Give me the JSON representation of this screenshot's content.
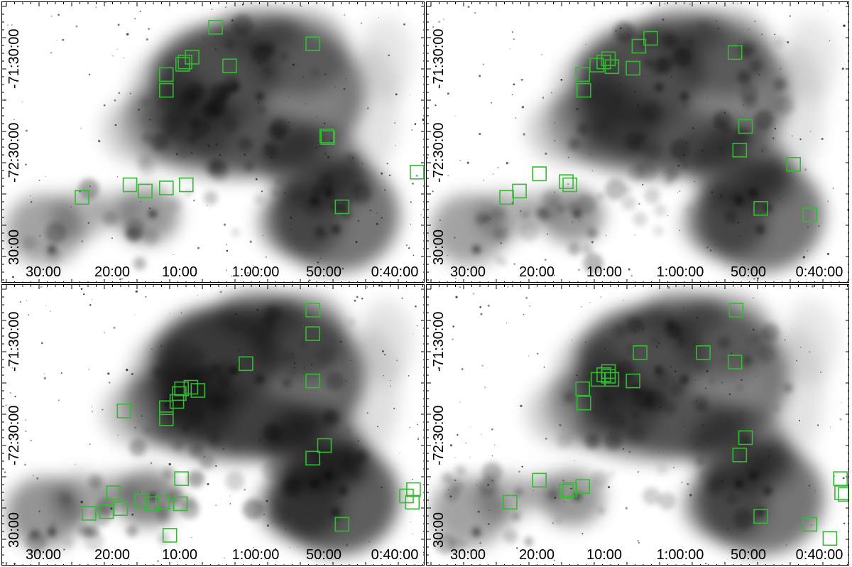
{
  "figure": {
    "x_tick_labels": [
      "30:00",
      "20:00",
      "10:00",
      "1:00:00",
      "50:00",
      "0:40:00"
    ],
    "y_tick_labels": [
      "-71:30:00",
      "-72:30:00",
      "30:00"
    ],
    "marker_color": "#33bb33",
    "panels": [
      {
        "id": "top-left",
        "markers": [
          {
            "ra": "1:05:30",
            "dec": "-71:18:00"
          },
          {
            "ra": "0:51:40",
            "dec": "-71:28:30"
          },
          {
            "ra": "1:08:50",
            "dec": "-71:37:00"
          },
          {
            "ra": "1:09:50",
            "dec": "-71:40:00"
          },
          {
            "ra": "1:10:10",
            "dec": "-71:41:30"
          },
          {
            "ra": "1:03:30",
            "dec": "-71:42:30"
          },
          {
            "ra": "1:12:30",
            "dec": "-71:48:00"
          },
          {
            "ra": "1:12:30",
            "dec": "-71:58:00"
          },
          {
            "ra": "0:49:40",
            "dec": "-72:27:00"
          },
          {
            "ra": "0:49:30",
            "dec": "-72:28:00"
          },
          {
            "ra": "0:36:50",
            "dec": "-72:50:00"
          },
          {
            "ra": "1:17:40",
            "dec": "-72:58:00"
          },
          {
            "ra": "1:09:40",
            "dec": "-72:58:00"
          },
          {
            "ra": "1:12:30",
            "dec": "-73:00:00"
          },
          {
            "ra": "1:15:30",
            "dec": "-73:02:00"
          },
          {
            "ra": "1:24:30",
            "dec": "-73:06:00"
          },
          {
            "ra": "0:47:30",
            "dec": "-73:12:00"
          }
        ]
      },
      {
        "id": "top-right",
        "markers": [
          {
            "ra": "1:04:00",
            "dec": "-71:25:00"
          },
          {
            "ra": "1:05:40",
            "dec": "-71:30:00"
          },
          {
            "ra": "0:52:00",
            "dec": "-71:34:00"
          },
          {
            "ra": "1:10:00",
            "dec": "-71:38:00"
          },
          {
            "ra": "1:10:40",
            "dec": "-71:40:00"
          },
          {
            "ra": "1:11:40",
            "dec": "-71:42:00"
          },
          {
            "ra": "1:09:30",
            "dec": "-71:43:00"
          },
          {
            "ra": "1:06:30",
            "dec": "-71:44:00"
          },
          {
            "ra": "1:13:40",
            "dec": "-71:48:00"
          },
          {
            "ra": "1:13:30",
            "dec": "-71:58:00"
          },
          {
            "ra": "0:50:30",
            "dec": "-72:21:00"
          },
          {
            "ra": "0:51:20",
            "dec": "-72:36:00"
          },
          {
            "ra": "0:43:40",
            "dec": "-72:45:00"
          },
          {
            "ra": "1:19:50",
            "dec": "-72:51:00"
          },
          {
            "ra": "1:16:00",
            "dec": "-72:56:00"
          },
          {
            "ra": "1:15:30",
            "dec": "-72:58:00"
          },
          {
            "ra": "1:22:40",
            "dec": "-73:02:00"
          },
          {
            "ra": "1:24:30",
            "dec": "-73:06:00"
          },
          {
            "ra": "0:48:20",
            "dec": "-73:13:00"
          },
          {
            "ra": "0:41:20",
            "dec": "-73:17:00"
          }
        ]
      },
      {
        "id": "bottom-left",
        "markers": [
          {
            "ra": "0:51:40",
            "dec": "-71:18:00"
          },
          {
            "ra": "0:51:40",
            "dec": "-71:33:00"
          },
          {
            "ra": "1:01:10",
            "dec": "-71:52:00"
          },
          {
            "ra": "0:51:40",
            "dec": "-72:03:00"
          },
          {
            "ra": "1:09:00",
            "dec": "-72:07:00"
          },
          {
            "ra": "1:10:20",
            "dec": "-72:08:00"
          },
          {
            "ra": "1:08:00",
            "dec": "-72:09:00"
          },
          {
            "ra": "1:10:40",
            "dec": "-72:11:00"
          },
          {
            "ra": "1:11:00",
            "dec": "-72:16:00"
          },
          {
            "ra": "1:12:30",
            "dec": "-72:20:00"
          },
          {
            "ra": "1:18:30",
            "dec": "-72:22:00"
          },
          {
            "ra": "1:12:30",
            "dec": "-72:27:00"
          },
          {
            "ra": "0:50:00",
            "dec": "-72:44:00"
          },
          {
            "ra": "0:51:40",
            "dec": "-72:52:00"
          },
          {
            "ra": "1:10:20",
            "dec": "-73:05:00"
          },
          {
            "ra": "0:37:20",
            "dec": "-73:12:00"
          },
          {
            "ra": "1:20:00",
            "dec": "-73:14:00"
          },
          {
            "ra": "0:38:20",
            "dec": "-73:16:00"
          },
          {
            "ra": "1:16:00",
            "dec": "-73:19:00"
          },
          {
            "ra": "0:37:30",
            "dec": "-73:20:00"
          },
          {
            "ra": "1:13:00",
            "dec": "-73:20:00"
          },
          {
            "ra": "1:14:30",
            "dec": "-73:21:00"
          },
          {
            "ra": "1:10:30",
            "dec": "-73:21:00"
          },
          {
            "ra": "1:19:00",
            "dec": "-73:24:00"
          },
          {
            "ra": "1:21:00",
            "dec": "-73:26:00"
          },
          {
            "ra": "1:23:30",
            "dec": "-73:27:00"
          },
          {
            "ra": "0:47:30",
            "dec": "-73:34:00"
          },
          {
            "ra": "1:12:00",
            "dec": "-73:41:00"
          }
        ]
      },
      {
        "id": "bottom-right",
        "markers": [
          {
            "ra": "0:51:50",
            "dec": "-71:18:00"
          },
          {
            "ra": "1:05:30",
            "dec": "-71:45:00"
          },
          {
            "ra": "0:56:30",
            "dec": "-71:45:00"
          },
          {
            "ra": "0:52:00",
            "dec": "-71:51:00"
          },
          {
            "ra": "1:10:00",
            "dec": "-71:57:00"
          },
          {
            "ra": "1:10:40",
            "dec": "-71:59:00"
          },
          {
            "ra": "1:10:00",
            "dec": "-72:00:00"
          },
          {
            "ra": "1:11:30",
            "dec": "-72:02:00"
          },
          {
            "ra": "1:09:30",
            "dec": "-72:02:00"
          },
          {
            "ra": "1:06:30",
            "dec": "-72:03:00"
          },
          {
            "ra": "1:13:40",
            "dec": "-72:08:00"
          },
          {
            "ra": "1:13:30",
            "dec": "-72:17:00"
          },
          {
            "ra": "0:50:30",
            "dec": "-72:39:00"
          },
          {
            "ra": "0:51:20",
            "dec": "-72:50:00"
          },
          {
            "ra": "0:37:00",
            "dec": "-73:05:00"
          },
          {
            "ra": "1:19:50",
            "dec": "-73:06:00"
          },
          {
            "ra": "1:15:30",
            "dec": "-73:12:00"
          },
          {
            "ra": "1:16:00",
            "dec": "-73:13:00"
          },
          {
            "ra": "1:13:40",
            "dec": "-73:10:00"
          },
          {
            "ra": "0:36:50",
            "dec": "-73:14:00"
          },
          {
            "ra": "0:36:20",
            "dec": "-73:15:00"
          },
          {
            "ra": "1:24:00",
            "dec": "-73:20:00"
          },
          {
            "ra": "0:48:20",
            "dec": "-73:29:00"
          },
          {
            "ra": "0:41:20",
            "dec": "-73:34:00"
          },
          {
            "ra": "0:38:30",
            "dec": "-73:43:00"
          }
        ]
      }
    ]
  }
}
